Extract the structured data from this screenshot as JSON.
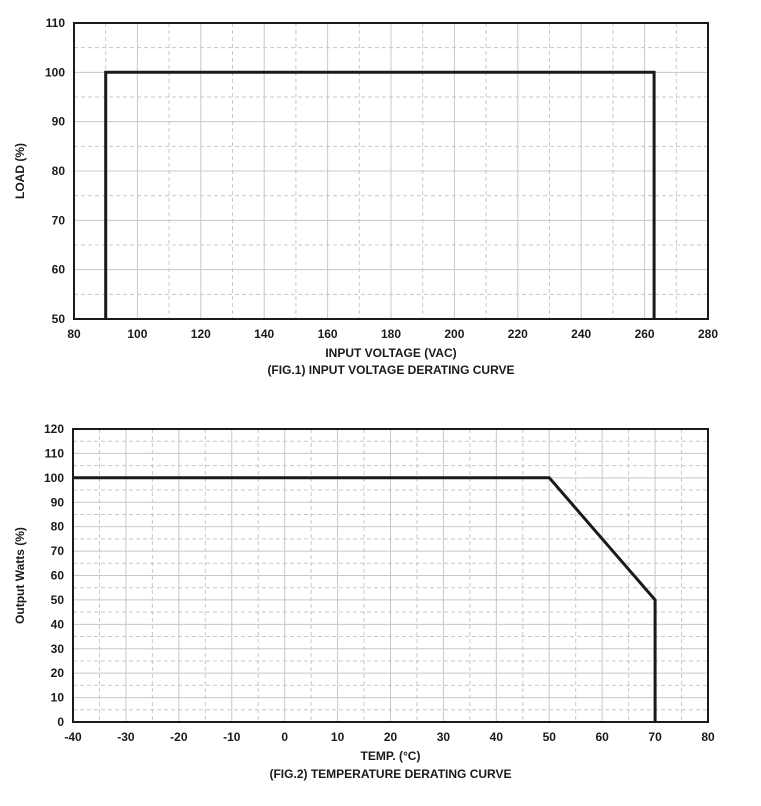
{
  "chart_data": [
    {
      "type": "line",
      "title": "(FIG.1) INPUT VOLTAGE DERATING CURVE",
      "xlabel": "INPUT VOLTAGE (VAC)",
      "ylabel": "LOAD (%)",
      "xlim": [
        80,
        280
      ],
      "ylim": [
        50,
        110
      ],
      "xticks": [
        80,
        100,
        120,
        140,
        160,
        180,
        200,
        220,
        240,
        260,
        280
      ],
      "yticks": [
        50,
        60,
        70,
        80,
        90,
        100,
        110
      ],
      "grid": true,
      "series": [
        {
          "x": [
            90,
            90,
            263,
            263
          ],
          "y": [
            50,
            100,
            100,
            50
          ]
        }
      ]
    },
    {
      "type": "line",
      "title": "(FIG.2) TEMPERATURE DERATING CURVE",
      "xlabel": "TEMP. (°C)",
      "ylabel": "Output Watts (%)",
      "xlim": [
        -40,
        80
      ],
      "ylim": [
        0,
        120
      ],
      "xticks": [
        -40,
        -30,
        -20,
        -10,
        0,
        10,
        20,
        30,
        40,
        50,
        60,
        70,
        80
      ],
      "yticks": [
        0,
        10,
        20,
        30,
        40,
        50,
        60,
        70,
        80,
        90,
        100,
        110,
        120
      ],
      "grid": true,
      "series": [
        {
          "x": [
            -40,
            50,
            70,
            70
          ],
          "y": [
            100,
            100,
            50,
            0
          ]
        }
      ]
    }
  ]
}
